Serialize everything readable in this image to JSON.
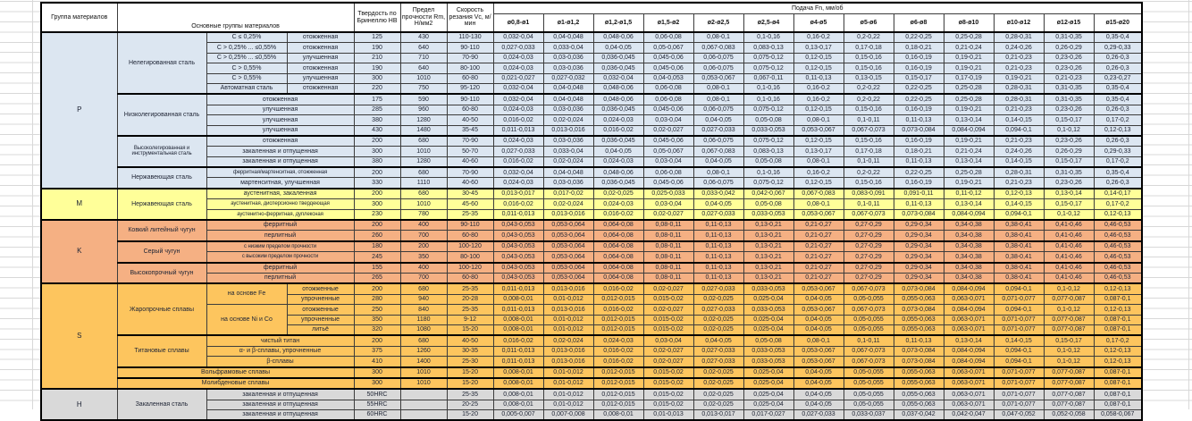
{
  "header": {
    "col_group": "Группа материалов",
    "col_main": "Основные группы материалов",
    "col_hardness": "Твердость по Бринеллю HB",
    "col_strength": "Предел прочности Rm, Н/мм2",
    "col_speed": "Скорость резания Vc, м/мин",
    "feed_title": "Подача Fn, мм/об",
    "feed_cols": [
      "ø0,8-ø1",
      "ø1-ø1,2",
      "ø1,2-ø1,5",
      "ø1,5-ø2",
      "ø2-ø2,5",
      "ø2,5-ø4",
      "ø4-ø5",
      "ø5-ø6",
      "ø6-ø8",
      "ø8-ø10",
      "ø10-ø12",
      "ø12-ø15",
      "ø15-ø20"
    ]
  },
  "colors": {
    "group_p": "#dce6f1",
    "group_m": "#ffff99",
    "group_k": "#f5b083",
    "group_s": "#fdc55e",
    "group_h": "#d9d9d9",
    "border": "#000000"
  },
  "feed_patterns": {
    "FA": [
      "0,032-0,04",
      "0,04-0,048",
      "0,048-0,06",
      "0,06-0,08",
      "0,08-0,1",
      "0,1-0,16",
      "0,16-0,2",
      "0,2-0,22",
      "0,22-0,25",
      "0,25-0,28",
      "0,28-0,31",
      "0,31-0,35",
      "0,35-0,4"
    ],
    "FB": [
      "0,027-0,033",
      "0,033-0,04",
      "0,04-0,05",
      "0,05-0,067",
      "0,067-0,083",
      "0,083-0,13",
      "0,13-0,17",
      "0,17-0,18",
      "0,18-0,21",
      "0,21-0,24",
      "0,24-0,26",
      "0,26-0,29",
      "0,29-0,33"
    ],
    "FC": [
      "0,024-0,03",
      "0,03-0,036",
      "0,036-0,045",
      "0,045-0,06",
      "0,06-0,075",
      "0,075-0,12",
      "0,12-0,15",
      "0,15-0,16",
      "0,16-0,19",
      "0,19-0,21",
      "0,21-0,23",
      "0,23-0,26",
      "0,26-0,3"
    ],
    "FD": [
      "0,021-0,027",
      "0,027-0,032",
      "0,032-0,04",
      "0,04-0,053",
      "0,053-0,067",
      "0,067-0,11",
      "0,11-0,13",
      "0,13-0,15",
      "0,15-0,17",
      "0,17-0,19",
      "0,19-0,21",
      "0,21-0,23",
      "0,23-0,27"
    ],
    "FE": [
      "0,016-0,02",
      "0,02-0,024",
      "0,024-0,03",
      "0,03-0,04",
      "0,04-0,05",
      "0,05-0,08",
      "0,08-0,1",
      "0,1-0,11",
      "0,11-0,13",
      "0,13-0,14",
      "0,14-0,15",
      "0,15-0,17",
      "0,17-0,2"
    ],
    "FF": [
      "0,011-0,013",
      "0,013-0,016",
      "0,016-0,02",
      "0,02-0,027",
      "0,027-0,033",
      "0,033-0,053",
      "0,053-0,067",
      "0,067-0,073",
      "0,073-0,084",
      "0,084-0,094",
      "0,094-0,1",
      "0,1-0,12",
      "0,12-0,13"
    ],
    "FG": [
      "0,013-0,017",
      "0,017-0,02",
      "0,02-0,025",
      "0,025-0,033",
      "0,033-0,042",
      "0,042-0,067",
      "0,067-0,083",
      "0,083-0,091",
      "0,091-0,11",
      "0,11-0,12",
      "0,12-0,13",
      "0,13-0,14",
      "0,14-0,17"
    ],
    "FK": [
      "0,043-0,053",
      "0,053-0,064",
      "0,064-0,08",
      "0,08-0,11",
      "0,11-0,13",
      "0,13-0,21",
      "0,21-0,27",
      "0,27-0,29",
      "0,29-0,34",
      "0,34-0,38",
      "0,38-0,41",
      "0,41-0,46",
      "0,46-0,53"
    ],
    "FH": [
      "0,008-0,01",
      "0,01-0,012",
      "0,012-0,015",
      "0,015-0,02",
      "0,02-0,025",
      "0,025-0,04",
      "0,04-0,05",
      "0,05-0,055",
      "0,055-0,063",
      "0,063-0,071",
      "0,071-0,077",
      "0,077-0,087",
      "0,087-0,1"
    ],
    "FZ": [
      "0,005-0,007",
      "0,007-0,008",
      "0,008-0,01",
      "0,01-0,013",
      "0,013-0,017",
      "0,017-0,027",
      "0,027-0,033",
      "0,033-0,037",
      "0,037-0,042",
      "0,042-0,047",
      "0,047-0,052",
      "0,052-0,058",
      "0,058-0,067"
    ]
  },
  "rows": [
    {
      "g": "p",
      "t": 1,
      "letter": [
        "P",
        15
      ],
      "family": [
        "Нелегированная сталь",
        6
      ],
      "sub": "C ≤ 0,25%",
      "cond": "отожженная",
      "hb": "125",
      "rm": "430",
      "vc": "110-130",
      "f": "FA"
    },
    {
      "g": "p",
      "sub": "C > 0,25% ... ≤0,55%",
      "cond": "отожженная",
      "hb": "190",
      "rm": "640",
      "vc": "90-110",
      "f": "FB"
    },
    {
      "g": "p",
      "sub": "C > 0,25% ... ≤0,55%",
      "cond": "улучшенная",
      "hb": "210",
      "rm": "710",
      "vc": "70-90",
      "f": "FC"
    },
    {
      "g": "p",
      "sub": "C > 0,55%",
      "cond": "отожженная",
      "hb": "190",
      "rm": "640",
      "vc": "80-100",
      "f": "FC"
    },
    {
      "g": "p",
      "sub": "C > 0,55%",
      "cond": "улучшенная",
      "hb": "300",
      "rm": "1010",
      "vc": "60-80",
      "f": "FD"
    },
    {
      "g": "p",
      "sub": "Автоматная сталь",
      "cond": "отожженная",
      "hb": "220",
      "rm": "750",
      "vc": "95-120",
      "f": "FA"
    },
    {
      "g": "p",
      "t": 1,
      "family": [
        "Низколегированная сталь",
        4
      ],
      "wide": "отожженная",
      "hb": "175",
      "rm": "590",
      "vc": "90-110",
      "f": "FA"
    },
    {
      "g": "p",
      "wide": "улучшенная",
      "hb": "285",
      "rm": "960",
      "vc": "60-80",
      "f": "FC"
    },
    {
      "g": "p",
      "wide": "улучшенная",
      "hb": "380",
      "rm": "1280",
      "vc": "40-50",
      "f": "FE"
    },
    {
      "g": "p",
      "wide": "улучшенная",
      "hb": "430",
      "rm": "1480",
      "vc": "35-45",
      "f": "FF"
    },
    {
      "g": "p",
      "t": 1,
      "family": [
        "Высоколегированная и инструментальная сталь",
        3
      ],
      "wide": "отожженная",
      "hb": "200",
      "rm": "680",
      "vc": "70-90",
      "f": "FC"
    },
    {
      "g": "p",
      "wide": "закаленная и отпущенная",
      "hb": "300",
      "rm": "1010",
      "vc": "50-70",
      "f": "FB"
    },
    {
      "g": "p",
      "wide": "закаленная и отпущенная",
      "hb": "380",
      "rm": "1280",
      "vc": "40-60",
      "f": "FE"
    },
    {
      "g": "p",
      "t": 1,
      "family": [
        "Нержавеющая сталь",
        2
      ],
      "wide": "ферритная/мартенситная, отожженная",
      "hb": "200",
      "rm": "680",
      "vc": "70-90",
      "f": "FA"
    },
    {
      "g": "p",
      "wide": "мартенситная, улучшенная",
      "hb": "330",
      "rm": "1110",
      "vc": "40-60",
      "f": "FC"
    },
    {
      "g": "m",
      "t": 1,
      "letter": [
        "M",
        3
      ],
      "family": [
        "Нержавеющая сталь",
        3
      ],
      "wide": "аустенитная, закаленная",
      "hb": "200",
      "rm": "680",
      "vc": "30-45",
      "f": "FG"
    },
    {
      "g": "m",
      "wide": "аустенитная, дисперсионно твердеющая",
      "hb": "300",
      "rm": "1010",
      "vc": "45-60",
      "f": "FE"
    },
    {
      "g": "m",
      "wide": "аустенитно-ферритная, дуплексная",
      "hb": "230",
      "rm": "780",
      "vc": "25-35",
      "f": "FF"
    },
    {
      "g": "k",
      "t": 1,
      "letter": [
        "K",
        6
      ],
      "family": [
        "Ковкий литейный чугун",
        2
      ],
      "wide": "ферритный",
      "hb": "200",
      "rm": "400",
      "vc": "90-110",
      "f": "FK"
    },
    {
      "g": "k",
      "wide": "перлитный",
      "hb": "260",
      "rm": "700",
      "vc": "60-80",
      "f": "FK"
    },
    {
      "g": "k",
      "t": 1,
      "family": [
        "Серый чугун",
        2
      ],
      "wide": "с низким пределом прочности",
      "hb": "180",
      "rm": "200",
      "vc": "100-120",
      "f": "FK"
    },
    {
      "g": "k",
      "wide": "с высоким пределом прочности",
      "hb": "245",
      "rm": "350",
      "vc": "80-100",
      "f": "FK"
    },
    {
      "g": "k",
      "t": 1,
      "family": [
        "Высокопрочный чугун",
        2
      ],
      "wide": "ферритный",
      "hb": "155",
      "rm": "400",
      "vc": "100-120",
      "f": "FK"
    },
    {
      "g": "k",
      "wide": "перлитный",
      "hb": "265",
      "rm": "700",
      "vc": "60-80",
      "f": "FK"
    },
    {
      "g": "s",
      "t": 1,
      "letter": [
        "S",
        10
      ],
      "family": [
        "Жаропрочные сплавы",
        5
      ],
      "sub": [
        "на основе Fe",
        2
      ],
      "cond": "отожженные",
      "hb": "200",
      "rm": "680",
      "vc": "25-35",
      "f": "FF"
    },
    {
      "g": "s",
      "cond": "упрочненные",
      "hb": "280",
      "rm": "940",
      "vc": "20-28",
      "f": "FH"
    },
    {
      "g": "s",
      "sub": [
        "на основе Ni и Co",
        3
      ],
      "cond": "отожженные",
      "hb": "250",
      "rm": "840",
      "vc": "25-35",
      "f": "FF"
    },
    {
      "g": "s",
      "cond": "упрочненные",
      "hb": "350",
      "rm": "1180",
      "vc": "9-12",
      "f": "FH"
    },
    {
      "g": "s",
      "cond": "литьё",
      "hb": "320",
      "rm": "1080",
      "vc": "15-20",
      "f": "FH"
    },
    {
      "g": "s",
      "t": 1,
      "family": [
        "Титановые сплавы",
        3
      ],
      "wide": "чистый титан",
      "hb": "200",
      "rm": "680",
      "vc": "40-50",
      "f": "FE"
    },
    {
      "g": "s",
      "wide": "α- и β-сплавы, упрочненные",
      "hb": "375",
      "rm": "1260",
      "vc": "30-35",
      "f": "FF"
    },
    {
      "g": "s",
      "wide": "β-сплавы",
      "hb": "410",
      "rm": "1400",
      "vc": "25-30",
      "f": "FF"
    },
    {
      "g": "s",
      "t": 1,
      "xwide": "Вольфрамовые сплавы",
      "hb": "300",
      "rm": "1010",
      "vc": "15-20",
      "f": "FH"
    },
    {
      "g": "s",
      "t": 1,
      "xwide": "Молибденовые сплавы",
      "hb": "300",
      "rm": "1010",
      "vc": "15-20",
      "f": "FH"
    },
    {
      "g": "h",
      "t": 1,
      "letter": [
        "H",
        3
      ],
      "family": [
        "Закаленная сталь",
        3
      ],
      "wide": "закаленная и отпущенная",
      "hb": "50HRC",
      "rm": "",
      "vc": "25-35",
      "f": "FH"
    },
    {
      "g": "h",
      "wide": "закаленная и отпущенная",
      "hb": "55HRC",
      "rm": "",
      "vc": "20-25",
      "f": "FH"
    },
    {
      "g": "h",
      "wide": "закаленная и отпущенная",
      "hb": "60HRC",
      "rm": "",
      "vc": "15-20",
      "f": "FZ"
    }
  ]
}
